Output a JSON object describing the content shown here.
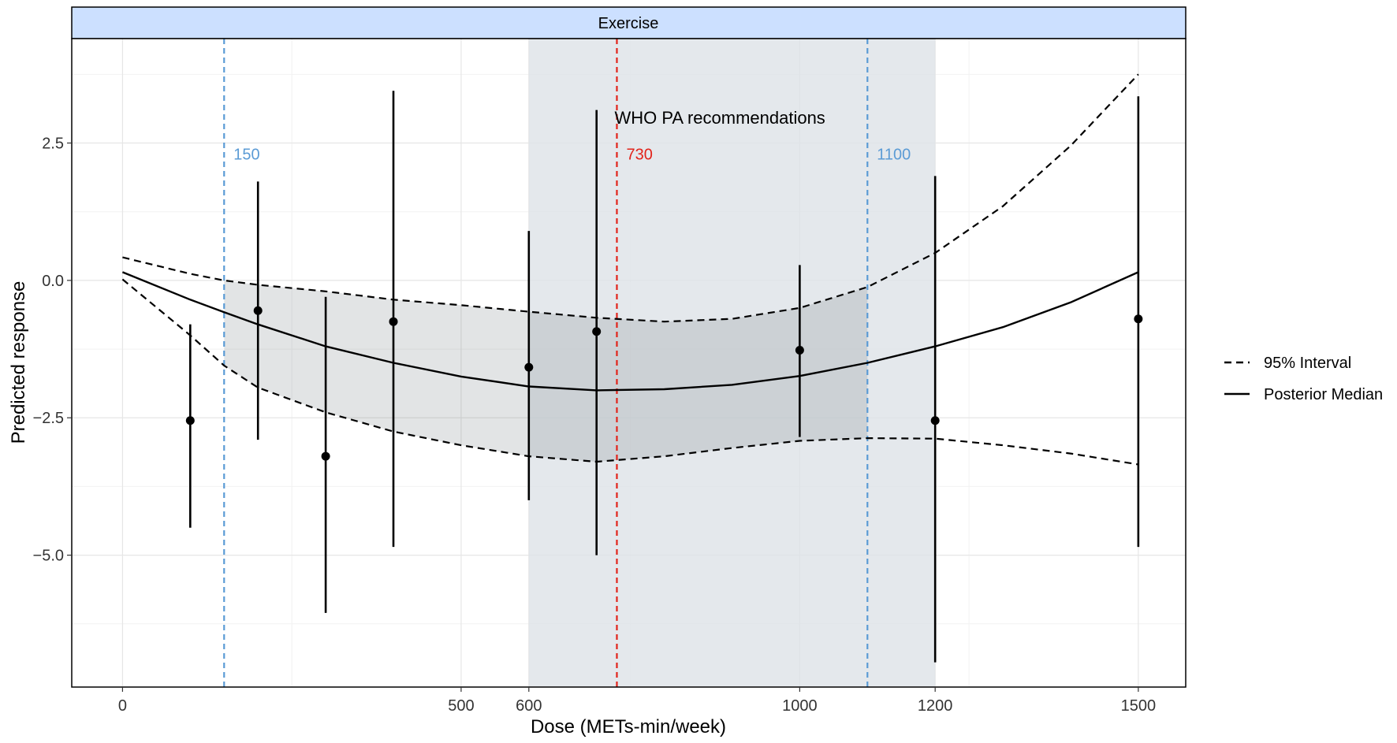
{
  "chart_data": {
    "type": "line",
    "panel_label": "Exercise",
    "xlabel": "Dose (METs-min/week)",
    "ylabel": "Predicted response",
    "xlim": [
      -75,
      1570
    ],
    "ylim": [
      -7.4,
      4.4
    ],
    "x_ticks": [
      {
        "value": 0,
        "label": "0"
      },
      {
        "value": 500,
        "label": "500"
      },
      {
        "value": 600,
        "label": "600"
      },
      {
        "value": 1000,
        "label": "1000"
      },
      {
        "value": 1200,
        "label": "1200"
      },
      {
        "value": 1500,
        "label": "1500"
      }
    ],
    "y_ticks": [
      {
        "value": 2.5,
        "label": "2.5"
      },
      {
        "value": 0,
        "label": "0.0"
      },
      {
        "value": -2.5,
        "label": "−2.5"
      },
      {
        "value": -5,
        "label": "−5.0"
      }
    ],
    "x_minor_grid": [
      250,
      750,
      1250
    ],
    "y_minor_grid": [
      3.75,
      1.25,
      -1.25,
      -3.75,
      -6.25
    ],
    "grid": true,
    "recommendation_band": {
      "x_range": [
        600,
        1200
      ],
      "color": "#dde2e7"
    },
    "vlines": [
      {
        "x": 150,
        "label": "150",
        "color": "#5b9bd5"
      },
      {
        "x": 730,
        "label": "730",
        "color": "#e2231a"
      },
      {
        "x": 1100,
        "label": "1100",
        "color": "#5b9bd5"
      }
    ],
    "annotation": {
      "text": "WHO PA recommendations",
      "x": 730,
      "y": 2.95
    },
    "interval_shade_range": [
      150,
      1100
    ],
    "median_curve": {
      "x": [
        0,
        100,
        150,
        200,
        300,
        400,
        500,
        600,
        700,
        800,
        900,
        1000,
        1100,
        1200,
        1300,
        1400,
        1500
      ],
      "y": [
        0.15,
        -0.35,
        -0.58,
        -0.8,
        -1.2,
        -1.5,
        -1.75,
        -1.93,
        -2.0,
        -1.98,
        -1.9,
        -1.74,
        -1.5,
        -1.2,
        -0.85,
        -0.4,
        0.15
      ]
    },
    "interval_upper": {
      "x": [
        0,
        100,
        150,
        200,
        300,
        400,
        500,
        600,
        700,
        800,
        900,
        1000,
        1100,
        1200,
        1300,
        1400,
        1500
      ],
      "y": [
        0.42,
        0.12,
        0.0,
        -0.08,
        -0.2,
        -0.35,
        -0.45,
        -0.57,
        -0.68,
        -0.75,
        -0.7,
        -0.5,
        -0.12,
        0.5,
        1.35,
        2.45,
        3.75
      ]
    },
    "interval_lower": {
      "x": [
        0,
        100,
        150,
        200,
        300,
        400,
        500,
        600,
        700,
        800,
        900,
        1000,
        1100,
        1200,
        1300,
        1400,
        1500
      ],
      "y": [
        0.02,
        -1.0,
        -1.55,
        -1.95,
        -2.4,
        -2.75,
        -3.0,
        -3.2,
        -3.3,
        -3.2,
        -3.05,
        -2.92,
        -2.87,
        -2.88,
        -3.0,
        -3.15,
        -3.35
      ]
    },
    "study_estimates": [
      {
        "x": 100,
        "y": -2.55,
        "lo": -4.5,
        "hi": -0.8
      },
      {
        "x": 200,
        "y": -0.55,
        "lo": -2.9,
        "hi": 1.8
      },
      {
        "x": 300,
        "y": -3.2,
        "lo": -6.05,
        "hi": -0.3
      },
      {
        "x": 400,
        "y": -0.75,
        "lo": -4.85,
        "hi": 3.45
      },
      {
        "x": 600,
        "y": -1.58,
        "lo": -4.0,
        "hi": 0.9
      },
      {
        "x": 700,
        "y": -0.93,
        "lo": -5.0,
        "hi": 3.1
      },
      {
        "x": 1000,
        "y": -1.27,
        "lo": -2.85,
        "hi": 0.28
      },
      {
        "x": 1200,
        "y": -2.55,
        "lo": -6.95,
        "hi": 1.9
      },
      {
        "x": 1500,
        "y": -0.7,
        "lo": -4.85,
        "hi": 3.35
      }
    ],
    "legend": {
      "position": "right",
      "entries": [
        {
          "label": "95% Interval",
          "style": "dashed"
        },
        {
          "label": "Posterior Median",
          "style": "solid"
        }
      ]
    }
  }
}
